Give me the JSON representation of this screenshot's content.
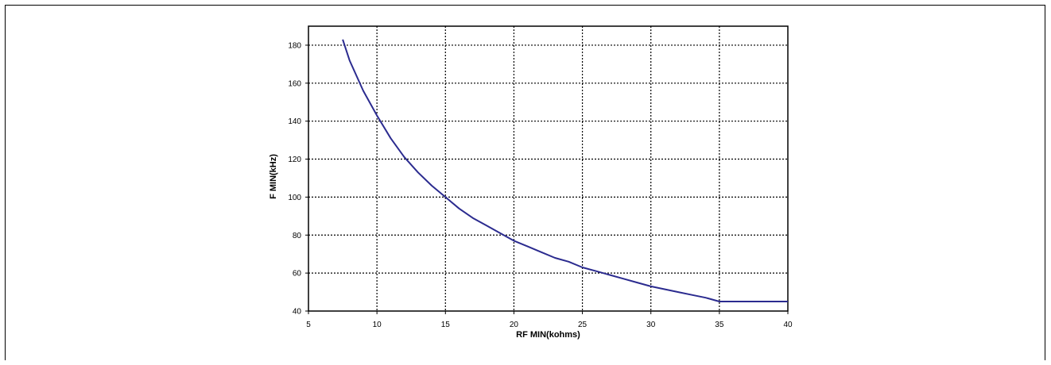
{
  "chart_data": {
    "type": "line",
    "xlabel": "RF MIN(kohms)",
    "ylabel": "F MIN(kHz)",
    "xlim": [
      5,
      40
    ],
    "ylim": [
      40,
      190
    ],
    "x_ticks": [
      5,
      10,
      15,
      20,
      25,
      30,
      35,
      40
    ],
    "y_ticks": [
      40,
      60,
      80,
      100,
      120,
      140,
      160,
      180
    ],
    "grid": true,
    "series": [
      {
        "color": "#2b2b8f",
        "x": [
          7.5,
          8,
          9,
          10,
          11,
          12,
          13,
          14,
          15,
          16,
          17,
          18,
          19,
          20,
          21,
          22,
          23,
          24,
          25,
          26,
          27,
          28,
          29,
          30,
          31,
          32,
          33,
          34,
          35,
          36,
          37,
          38,
          39,
          40
        ],
        "y": [
          183,
          172,
          156,
          143,
          131,
          121,
          113,
          106,
          100,
          94,
          89,
          85,
          81,
          77,
          74,
          71,
          68,
          66,
          63,
          61,
          59,
          57,
          55,
          53,
          51.5,
          50,
          48.5,
          47,
          45,
          45,
          45,
          45,
          45,
          45
        ]
      }
    ]
  }
}
